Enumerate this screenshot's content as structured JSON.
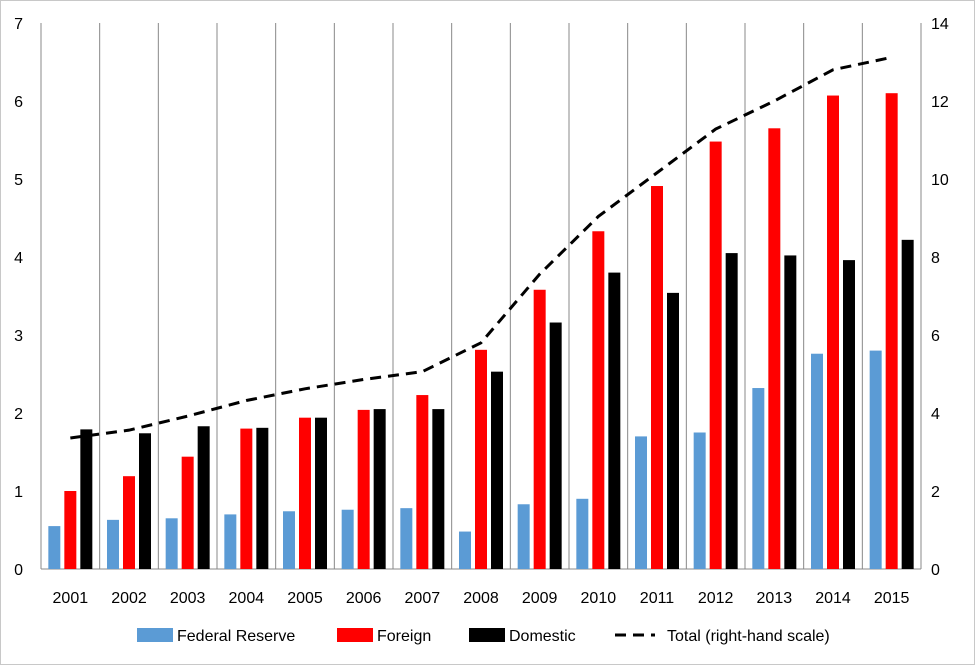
{
  "chart_data": {
    "type": "bar",
    "categories": [
      "2001",
      "2002",
      "2003",
      "2004",
      "2005",
      "2006",
      "2007",
      "2008",
      "2009",
      "2010",
      "2011",
      "2012",
      "2013",
      "2014",
      "2015"
    ],
    "series": [
      {
        "name": "Federal Reserve",
        "color": "#5b9bd5",
        "axis": "left",
        "values": [
          0.55,
          0.63,
          0.65,
          0.7,
          0.74,
          0.76,
          0.78,
          0.48,
          0.83,
          0.9,
          1.7,
          1.75,
          2.32,
          2.76,
          2.8
        ]
      },
      {
        "name": "Foreign",
        "color": "#ff0000",
        "axis": "left",
        "values": [
          1.0,
          1.19,
          1.44,
          1.8,
          1.94,
          2.04,
          2.23,
          2.81,
          3.58,
          4.33,
          4.91,
          5.48,
          5.65,
          6.07,
          6.1
        ]
      },
      {
        "name": "Domestic",
        "color": "#000000",
        "axis": "left",
        "values": [
          1.79,
          1.74,
          1.83,
          1.81,
          1.94,
          2.05,
          2.05,
          2.53,
          3.16,
          3.8,
          3.54,
          4.05,
          4.02,
          3.96,
          4.22
        ]
      },
      {
        "name": "Total (right-hand scale)",
        "type": "line",
        "style": "dashed",
        "color": "#000000",
        "axis": "right",
        "values": [
          3.36,
          3.56,
          3.92,
          4.32,
          4.62,
          4.86,
          5.06,
          5.8,
          7.56,
          9.04,
          10.16,
          11.28,
          12.0,
          12.8,
          13.12
        ]
      }
    ],
    "ylim": [
      0,
      7
    ],
    "y2lim": [
      0,
      14
    ],
    "yticks": [
      "0",
      "1",
      "2",
      "3",
      "4",
      "5",
      "6",
      "7"
    ],
    "y2ticks": [
      "0",
      "2",
      "4",
      "6",
      "8",
      "10",
      "12",
      "14"
    ],
    "grid": "vertical",
    "legend_position": "bottom"
  }
}
